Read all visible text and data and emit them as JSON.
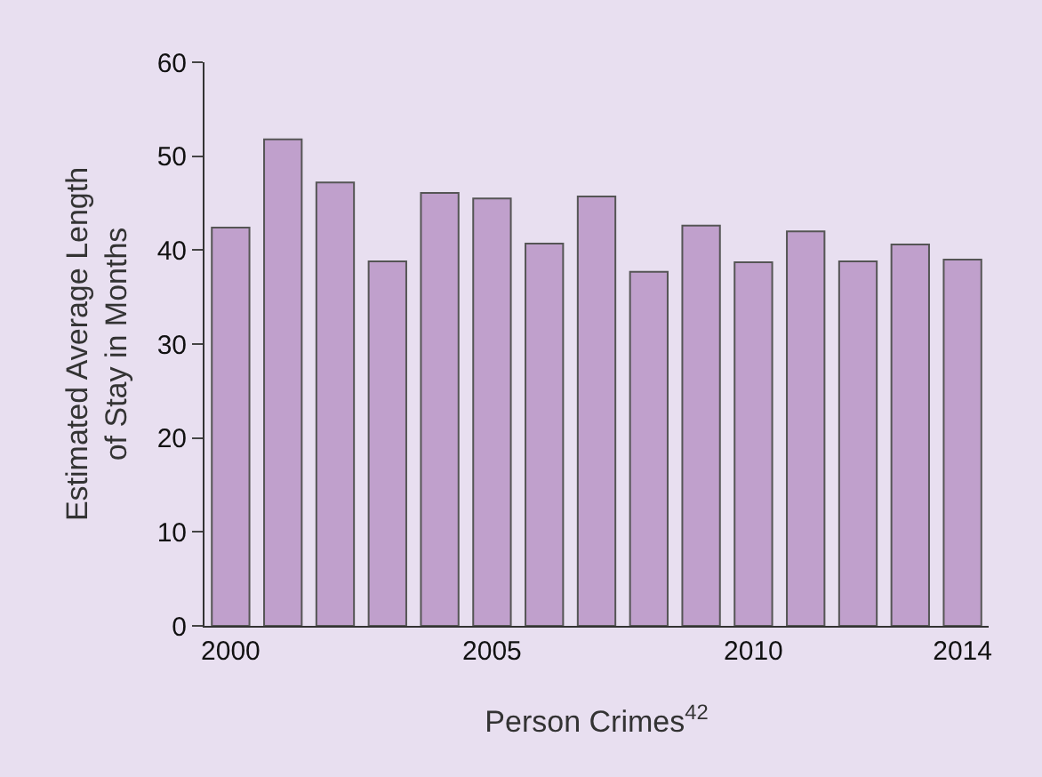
{
  "chart_data": {
    "type": "bar",
    "xlabel": "Person Crimes$^{42}$",
    "ylabel": "Estimated Average Length\nof Stay in Months",
    "x": [
      2000,
      2001,
      2002,
      2003,
      2004,
      2005,
      2006,
      2007,
      2008,
      2009,
      2010,
      2011,
      2012,
      2013,
      2014
    ],
    "values": [
      42.4,
      51.8,
      47.2,
      38.8,
      46.1,
      45.5,
      40.7,
      45.7,
      37.7,
      42.6,
      38.7,
      42.0,
      38.8,
      40.6,
      39.0
    ],
    "color": "#c0a0cc",
    "xlim": [
      1999.5,
      2014.5
    ],
    "xticks": [
      2000,
      2005,
      2010,
      2014
    ],
    "ylim": [
      0,
      60
    ],
    "yticks": [
      0,
      10,
      20,
      30,
      40,
      50,
      60
    ],
    "grid": false
  }
}
